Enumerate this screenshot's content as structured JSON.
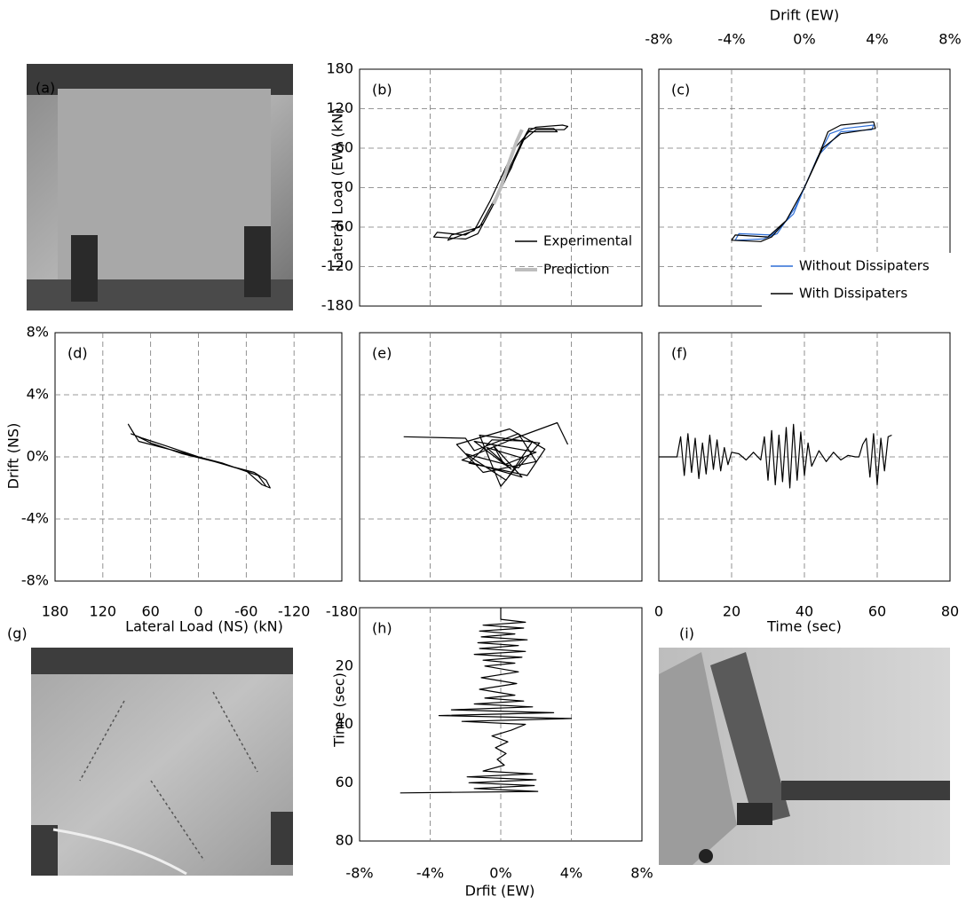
{
  "photos": [
    {
      "label": "(a)"
    },
    {
      "label": "(g)"
    },
    {
      "label": "(i)"
    }
  ],
  "chart_data": [
    {
      "type": "line",
      "panel_label": "(b)",
      "ylabel": "Lateral Load (EW) (kN)",
      "xlim": [
        -8,
        8
      ],
      "xticks": [
        -8,
        -4,
        0,
        4,
        8
      ],
      "x_axis": "none",
      "ylim": [
        -180,
        180
      ],
      "yticks": [
        180,
        120,
        60,
        0,
        -60,
        -120,
        -180
      ],
      "y_axis": "left",
      "grid": true,
      "legend": "lower right",
      "series": [
        {
          "name": "Experimental",
          "color": "#000000",
          "x": [
            0,
            0.6,
            1.1,
            1.5,
            2,
            3.5,
            3.8,
            3.6,
            2,
            1.2,
            0.5,
            -0.5,
            -1.3,
            -2,
            -3.8,
            -3.6,
            -2,
            -1,
            -0.3,
            0.4,
            1,
            1.6,
            3,
            3.2,
            1.6,
            0.8,
            -0.6,
            -1.5,
            -3,
            -2.8,
            -1.2,
            0
          ],
          "values": [
            0,
            30,
            65,
            85,
            92,
            95,
            93,
            88,
            88,
            70,
            30,
            -30,
            -70,
            -78,
            -75,
            -68,
            -72,
            -55,
            -20,
            20,
            55,
            90,
            90,
            85,
            85,
            60,
            -20,
            -65,
            -80,
            -72,
            -60,
            0
          ]
        },
        {
          "name": "Prediction",
          "color": "#bdbdbd",
          "linewidth": 4,
          "x": [
            -0.4,
            0,
            0.5,
            0.9,
            1.2
          ],
          "values": [
            -25,
            0,
            40,
            70,
            88
          ]
        }
      ]
    },
    {
      "type": "line",
      "panel_label": "(c)",
      "xlabel": "Drift (EW)",
      "xlim": [
        -8,
        8
      ],
      "xticks": [
        {
          "value": -8,
          "label": "-8%"
        },
        {
          "value": -4,
          "label": "-4%"
        },
        {
          "value": 0,
          "label": "0%"
        },
        {
          "value": 4,
          "label": "4%"
        },
        {
          "value": 8,
          "label": "8%"
        }
      ],
      "x_axis": "top",
      "ylim": [
        -180,
        180
      ],
      "yticks": [
        180,
        120,
        60,
        0,
        -60,
        -120,
        -180
      ],
      "y_axis": "none",
      "grid": true,
      "legend": "lower right",
      "series": [
        {
          "name": "Without Dissipaters",
          "color": "#2f6fd6",
          "x": [
            0,
            0.7,
            1.4,
            2.2,
            3.8,
            3.7,
            2,
            0.8,
            -0.5,
            -1.5,
            -2.3,
            -3.8,
            -3.6,
            -1.8,
            -0.6,
            0
          ],
          "values": [
            0,
            45,
            82,
            90,
            95,
            88,
            85,
            50,
            -30,
            -70,
            -78,
            -80,
            -70,
            -72,
            -40,
            0
          ]
        },
        {
          "name": "With Dissipaters",
          "color": "#000000",
          "x": [
            0,
            0.8,
            1.3,
            2,
            3.8,
            3.9,
            2,
            1,
            0,
            -1,
            -1.8,
            -2.4,
            -4,
            -3.8,
            -2,
            -1,
            0
          ],
          "values": [
            0,
            50,
            85,
            95,
            100,
            90,
            82,
            60,
            0,
            -50,
            -75,
            -82,
            -80,
            -72,
            -75,
            -50,
            0
          ]
        }
      ]
    },
    {
      "type": "line",
      "panel_label": "(d)",
      "xlabel": "Lateral Load (NS) (kN)",
      "xlim": [
        180,
        -180
      ],
      "xticks": [
        180,
        120,
        60,
        0,
        -60,
        -120,
        -180
      ],
      "x_axis": "bottom",
      "ylabel": "Drift (NS)",
      "ylim": [
        -8,
        8
      ],
      "yticks": [
        {
          "value": 8,
          "label": "8%"
        },
        {
          "value": 4,
          "label": "4%"
        },
        {
          "value": 0,
          "label": "0%"
        },
        {
          "value": -4,
          "label": "-4%"
        },
        {
          "value": -8,
          "label": "-8%"
        }
      ],
      "y_axis": "left",
      "grid": true,
      "series": [
        {
          "color": "#000000",
          "x": [
            85,
            70,
            40,
            0,
            -40,
            -70,
            -85,
            -90,
            -80,
            -60,
            -20,
            20,
            60,
            80,
            88,
            75,
            30,
            -30,
            -75,
            -85
          ],
          "values": [
            1.5,
            1.2,
            0.7,
            0,
            -0.6,
            -1,
            -1.5,
            -2,
            -1.8,
            -0.9,
            -0.3,
            0.2,
            0.9,
            1.4,
            2.1,
            1,
            0.4,
            -0.4,
            -1.2,
            -1.9
          ]
        }
      ]
    },
    {
      "type": "line",
      "panel_label": "(e)",
      "xlim": [
        -8,
        8
      ],
      "xticks": [
        -8,
        -4,
        0,
        4,
        8
      ],
      "x_axis": "none",
      "ylim": [
        -8,
        8
      ],
      "yticks": [
        -8,
        -4,
        0,
        4,
        8
      ],
      "y_axis": "none",
      "grid": true,
      "series": [
        {
          "color": "#000000",
          "x": [
            -5.5,
            -2,
            -1.5,
            1,
            2,
            -1,
            -2.5,
            0.5,
            2.5,
            1.5,
            -1.8,
            -0.5,
            1.8,
            0.3,
            -2,
            1,
            2.2,
            -1.2,
            0,
            1.3,
            -0.8,
            0.6,
            -1.5,
            2,
            0.2,
            -0.4,
            1.2,
            -2.2,
            0.8,
            3.2,
            3.8
          ],
          "values": [
            1.3,
            1.2,
            0.4,
            1.5,
            -0.3,
            -1,
            0.8,
            1.8,
            0.5,
            -1.2,
            -0.4,
            1.1,
            1,
            -1.5,
            0.2,
            -0.7,
            0.9,
            1.4,
            -1.9,
            -0.1,
            0.6,
            -0.8,
            1,
            0.3,
            -0.5,
            0.7,
            -1.3,
            -0.2,
            1.2,
            2.2,
            0.8
          ]
        }
      ]
    },
    {
      "type": "line",
      "panel_label": "(f)",
      "xlabel": "Time (sec)",
      "xlim": [
        0,
        80
      ],
      "xticks": [
        0,
        20,
        40,
        60,
        80
      ],
      "x_axis": "bottom",
      "ylim": [
        -8,
        8
      ],
      "yticks": [
        -8,
        -4,
        0,
        4,
        8
      ],
      "y_axis": "none",
      "grid": true,
      "series": [
        {
          "color": "#000000",
          "x": [
            0,
            5,
            6,
            7,
            8,
            9,
            10,
            11,
            12,
            13,
            14,
            15,
            16,
            17,
            18,
            19,
            20,
            22,
            24,
            26,
            28,
            29,
            30,
            31,
            32,
            33,
            34,
            35,
            36,
            37,
            38,
            39,
            40,
            41,
            42,
            44,
            46,
            48,
            50,
            52,
            54,
            55,
            56,
            57,
            58,
            59,
            60,
            61,
            62,
            63,
            64
          ],
          "values": [
            0,
            0,
            1.3,
            -1.2,
            1.5,
            -1,
            1.2,
            -1.4,
            0.9,
            -1.1,
            1.4,
            -0.8,
            1.1,
            -0.9,
            0.6,
            -0.5,
            0.3,
            0.2,
            -0.2,
            0.3,
            -0.2,
            1.3,
            -1.5,
            1.7,
            -1.8,
            1.4,
            -1.6,
            1.9,
            -2,
            2.1,
            -1.5,
            1.6,
            -1.2,
            0.9,
            -0.6,
            0.4,
            -0.3,
            0.3,
            -0.2,
            0.1,
            0,
            0,
            0.8,
            1.2,
            -1.3,
            1.5,
            -1.8,
            1.2,
            -0.9,
            1.3,
            1.4
          ]
        }
      ]
    },
    {
      "type": "line",
      "panel_label": "(h)",
      "orientation": "vertical",
      "xlabel": "Time (sec)",
      "xlim": [
        0,
        80
      ],
      "xticks": [
        20,
        40,
        60,
        80
      ],
      "x_axis": "left",
      "ylabel": "Drfit (EW)",
      "ylim": [
        -8,
        8
      ],
      "yticks": [
        {
          "value": -8,
          "label": "-8%"
        },
        {
          "value": -4,
          "label": "-4%"
        },
        {
          "value": 0,
          "label": "0%"
        },
        {
          "value": 4,
          "label": "4%"
        },
        {
          "value": 8,
          "label": "8%"
        }
      ],
      "y_axis": "bottom",
      "grid": "y",
      "series": [
        {
          "color": "#000000",
          "x": [
            0,
            4,
            5,
            6,
            7,
            8,
            9,
            10,
            11,
            12,
            13,
            14,
            15,
            16,
            17,
            18,
            19,
            20,
            22,
            24,
            26,
            28,
            30,
            31,
            32,
            33,
            34,
            35,
            36,
            37,
            38,
            39,
            40,
            42,
            44,
            46,
            48,
            50,
            52,
            54,
            56,
            57,
            58,
            59,
            60,
            61,
            62,
            63,
            63.5
          ],
          "values": [
            0,
            0,
            1.4,
            -1,
            1.3,
            -1.2,
            0.8,
            -1.1,
            1.5,
            -1.3,
            1,
            -1.2,
            1.4,
            -1.5,
            1.2,
            -1,
            0.8,
            -0.9,
            1,
            -1.1,
            0.9,
            -1.2,
            0.8,
            -0.9,
            1.3,
            -1.5,
            1.8,
            -2.8,
            3,
            -3.5,
            4,
            -2.2,
            1.4,
            0.6,
            -0.5,
            0.4,
            -0.3,
            0.3,
            -0.2,
            0.2,
            -1,
            1.8,
            -1.9,
            2,
            -1.8,
            1.9,
            -1.5,
            2.1,
            -5.7
          ]
        }
      ]
    }
  ]
}
